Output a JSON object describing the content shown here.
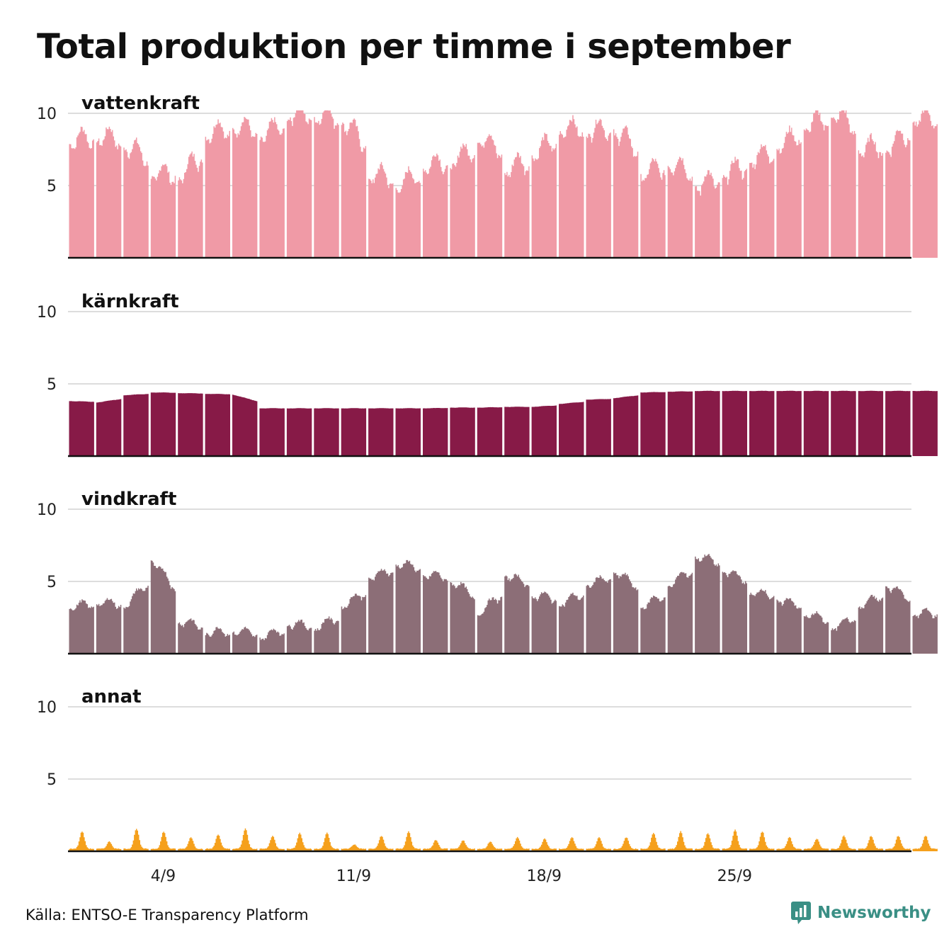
{
  "title": "Total produktion per timme i september",
  "source": "Källa: ENTSO-E Transparency Platform",
  "brand": {
    "name": "Newsworthy",
    "color": "#3a8f85",
    "icon": "newsworthy-logo-icon"
  },
  "chart_data": {
    "type": "area",
    "x_unit": "day of September (hourly resolution)",
    "x_range": [
      1,
      31
    ],
    "x_ticks": [
      {
        "day": 4,
        "label": "4/9"
      },
      {
        "day": 11,
        "label": "11/9"
      },
      {
        "day": 18,
        "label": "18/9"
      },
      {
        "day": 25,
        "label": "25/9"
      }
    ],
    "y_range": [
      0,
      10
    ],
    "y_ticks": [
      {
        "value": 5,
        "label": "5"
      },
      {
        "value": 10,
        "label": "10"
      }
    ],
    "grid": true,
    "panels": [
      {
        "name": "vattenkraft",
        "color": "#f09aa6",
        "daily_level": [
          7.5,
          7.8,
          7.2,
          5.2,
          5.0,
          8.0,
          8.5,
          7.8,
          9.3,
          9.2,
          9.0,
          5.2,
          4.4,
          5.8,
          6.0,
          7.8,
          5.5,
          6.6,
          8.3,
          8.2,
          8.3,
          5.2,
          6.0,
          4.4,
          5.2,
          6.2,
          7.2,
          8.5,
          9.5,
          7.0,
          7.0,
          9.0
        ],
        "diurnal_amplitude": 1.4
      },
      {
        "name": "kärnkraft",
        "color": "#871a47",
        "daily_level": [
          3.8,
          3.7,
          4.2,
          4.4,
          4.35,
          4.3,
          4.25,
          3.3,
          3.3,
          3.3,
          3.3,
          3.3,
          3.3,
          3.3,
          3.35,
          3.35,
          3.4,
          3.4,
          3.6,
          3.9,
          4.0,
          4.4,
          4.45,
          4.5,
          4.5,
          4.5,
          4.5,
          4.5,
          4.5,
          4.5,
          4.5,
          4.5
        ],
        "diurnal_amplitude": 0.02
      },
      {
        "name": "vindkraft",
        "color": "#8c6e77",
        "daily_level": [
          3.0,
          3.3,
          3.0,
          6.3,
          2.0,
          1.2,
          1.3,
          0.9,
          1.8,
          1.5,
          3.0,
          5.0,
          6.0,
          5.2,
          4.8,
          2.5,
          5.2,
          3.8,
          3.2,
          4.5,
          5.5,
          3.0,
          4.5,
          6.5,
          5.5,
          4.0,
          3.5,
          2.5,
          1.5,
          3.0,
          4.5,
          2.5
        ],
        "diurnal_amplitude": 0.6
      },
      {
        "name": "annat",
        "color": "#f5a01c",
        "daily_level": [
          0.15,
          0.15,
          0.15,
          0.15,
          0.15,
          0.15,
          0.15,
          0.15,
          0.15,
          0.15,
          0.15,
          0.15,
          0.15,
          0.15,
          0.15,
          0.15,
          0.15,
          0.15,
          0.15,
          0.15,
          0.15,
          0.15,
          0.15,
          0.15,
          0.15,
          0.15,
          0.15,
          0.15,
          0.15,
          0.15,
          0.15,
          0.15
        ],
        "daily_peak": [
          1.2,
          0.5,
          1.4,
          1.2,
          0.8,
          1.0,
          1.4,
          0.9,
          1.1,
          1.1,
          0.3,
          0.9,
          1.2,
          0.6,
          0.6,
          0.5,
          0.8,
          0.7,
          0.8,
          0.8,
          0.8,
          1.1,
          1.2,
          1.1,
          1.3,
          1.2,
          0.8,
          0.7,
          0.9,
          0.9,
          0.9,
          0.9
        ]
      }
    ]
  }
}
